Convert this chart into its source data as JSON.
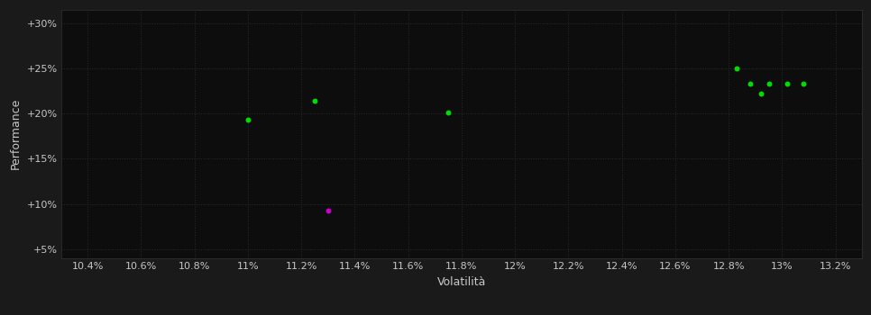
{
  "background_color": "#1a1a1a",
  "plot_bg_color": "#0d0d0d",
  "text_color": "#c8c8c8",
  "xlabel": "Volatilità",
  "ylabel": "Performance",
  "xlim": [
    0.103,
    0.133
  ],
  "ylim": [
    0.04,
    0.315
  ],
  "xticks": [
    0.104,
    0.106,
    0.108,
    0.11,
    0.112,
    0.114,
    0.116,
    0.118,
    0.12,
    0.122,
    0.124,
    0.126,
    0.128,
    0.13,
    0.132
  ],
  "yticks": [
    0.05,
    0.1,
    0.15,
    0.2,
    0.25,
    0.3
  ],
  "green_points": [
    [
      0.11,
      0.193
    ],
    [
      0.1125,
      0.214
    ],
    [
      0.1175,
      0.201
    ],
    [
      0.1283,
      0.25
    ],
    [
      0.1288,
      0.233
    ],
    [
      0.1295,
      0.233
    ],
    [
      0.1302,
      0.233
    ],
    [
      0.1292,
      0.222
    ],
    [
      0.1308,
      0.233
    ]
  ],
  "magenta_points": [
    [
      0.113,
      0.093
    ]
  ],
  "point_size": 18,
  "green_color": "#00dd00",
  "magenta_color": "#cc00cc",
  "font_size_labels": 9,
  "font_size_ticks": 8,
  "grid_color": "#2a2a2a",
  "grid_linestyle": ":",
  "grid_linewidth": 0.7
}
